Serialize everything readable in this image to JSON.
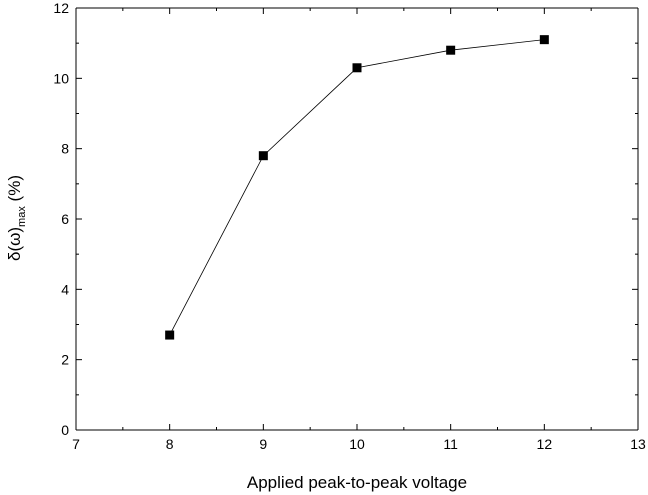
{
  "chart_data": {
    "type": "line",
    "title": "",
    "xlabel": "Applied peak-to-peak voltage",
    "ylabel": {
      "main": "δ(ω)",
      "subscript": "max",
      "suffix": " (%)"
    },
    "xlim": [
      7,
      13
    ],
    "ylim": [
      0,
      12
    ],
    "xticks": [
      7,
      8,
      9,
      10,
      11,
      12,
      13
    ],
    "yticks": [
      0,
      2,
      4,
      6,
      8,
      10,
      12
    ],
    "grid": false,
    "marker": "square",
    "colors": {
      "line": "#000000",
      "marker": "#000000",
      "axis": "#000000"
    },
    "series": [
      {
        "x": [
          8,
          9,
          10,
          11,
          12
        ],
        "y": [
          2.7,
          7.8,
          10.3,
          10.8,
          11.1
        ]
      }
    ]
  }
}
